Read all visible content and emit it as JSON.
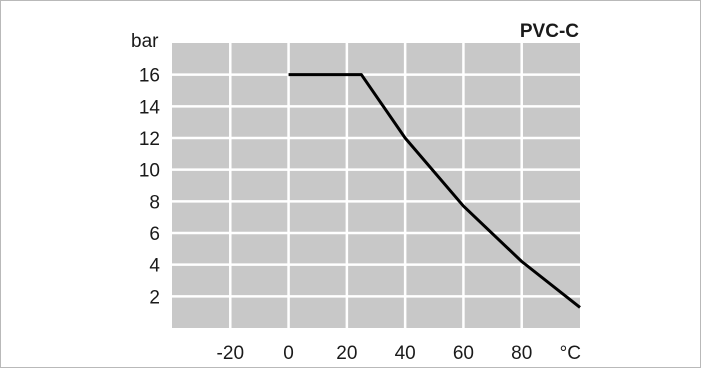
{
  "chart_data": {
    "type": "line",
    "title": "PVC-C",
    "ylabel": "bar",
    "xlabel": "°C",
    "xlim": [
      -40,
      100
    ],
    "ylim": [
      0,
      18
    ],
    "x_ticks": [
      -20,
      0,
      20,
      40,
      60,
      80
    ],
    "y_ticks": [
      2,
      4,
      6,
      8,
      10,
      12,
      14,
      16
    ],
    "grid": true,
    "colors": {
      "plot_background": "#c8c8c8",
      "grid": "#ffffff",
      "line": "#000000"
    },
    "series": [
      {
        "x": [
          0,
          25,
          40,
          60,
          80,
          100
        ],
        "y": [
          16,
          16,
          12,
          7.7,
          4.2,
          1.3
        ]
      }
    ]
  }
}
